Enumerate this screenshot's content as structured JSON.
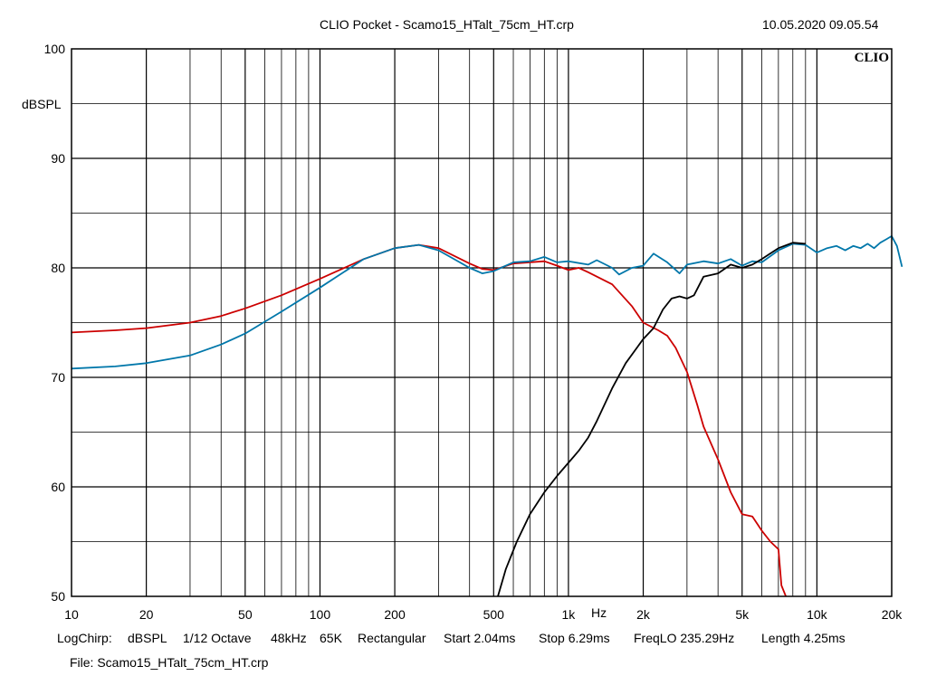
{
  "header": {
    "title": "CLIO Pocket - Scamo15_HTalt_75cm_HT.crp",
    "datetime": "10.05.2020 09.05.54",
    "logo": "CLIO"
  },
  "footer": {
    "params": [
      "LogChirp:",
      "dBSPL",
      "1/12 Octave",
      "48kHz",
      "65K",
      "Rectangular",
      "Start 2.04ms",
      "Stop 6.29ms",
      "FreqLO 235.29Hz",
      "Length 4.25ms"
    ],
    "file": "File: Scamo15_HTalt_75cm_HT.crp"
  },
  "chart_data": {
    "type": "line",
    "x_scale": "log",
    "xlabel": "Hz",
    "ylabel": "dBSPL",
    "xlim": [
      10,
      20000
    ],
    "ylim": [
      50,
      100
    ],
    "grid": true,
    "x_ticks": [
      {
        "value": 10,
        "label": "10"
      },
      {
        "value": 20,
        "label": "20"
      },
      {
        "value": 50,
        "label": "50"
      },
      {
        "value": 100,
        "label": "100"
      },
      {
        "value": 200,
        "label": "200"
      },
      {
        "value": 500,
        "label": "500"
      },
      {
        "value": 1000,
        "label": "1k"
      },
      {
        "value": 2000,
        "label": "2k"
      },
      {
        "value": 5000,
        "label": "5k"
      },
      {
        "value": 10000,
        "label": "10k"
      },
      {
        "value": 20000,
        "label": "20k"
      }
    ],
    "y_ticks": [
      {
        "value": 100,
        "label": "100"
      },
      {
        "value": 90,
        "label": "90"
      },
      {
        "value": 80,
        "label": "80"
      },
      {
        "value": 70,
        "label": "70"
      },
      {
        "value": 60,
        "label": "60"
      },
      {
        "value": 50,
        "label": "50"
      }
    ],
    "series": [
      {
        "color": "#cc0000",
        "points": [
          [
            10,
            74.1
          ],
          [
            15,
            74.3
          ],
          [
            20,
            74.5
          ],
          [
            30,
            75
          ],
          [
            40,
            75.6
          ],
          [
            50,
            76.3
          ],
          [
            70,
            77.5
          ],
          [
            100,
            79
          ],
          [
            150,
            80.8
          ],
          [
            200,
            81.8
          ],
          [
            250,
            82.1
          ],
          [
            300,
            81.8
          ],
          [
            400,
            80.4
          ],
          [
            450,
            79.9
          ],
          [
            500,
            79.8
          ],
          [
            600,
            80.4
          ],
          [
            800,
            80.6
          ],
          [
            900,
            80.2
          ],
          [
            1000,
            79.8
          ],
          [
            1100,
            80
          ],
          [
            1200,
            79.6
          ],
          [
            1500,
            78.5
          ],
          [
            1800,
            76.5
          ],
          [
            2000,
            75
          ],
          [
            2300,
            74.3
          ],
          [
            2500,
            73.8
          ],
          [
            2700,
            72.7
          ],
          [
            3000,
            70.5
          ],
          [
            3300,
            67.5
          ],
          [
            3500,
            65.5
          ],
          [
            4000,
            62.5
          ],
          [
            4500,
            59.5
          ],
          [
            5000,
            57.5
          ],
          [
            5500,
            57.3
          ],
          [
            6000,
            56
          ],
          [
            6500,
            55
          ],
          [
            7000,
            54.3
          ],
          [
            7200,
            51
          ],
          [
            7500,
            50
          ]
        ]
      },
      {
        "color": "#0077aa",
        "points": [
          [
            10,
            70.8
          ],
          [
            15,
            71
          ],
          [
            20,
            71.3
          ],
          [
            30,
            72
          ],
          [
            40,
            73
          ],
          [
            50,
            74
          ],
          [
            70,
            76
          ],
          [
            100,
            78.2
          ],
          [
            150,
            80.8
          ],
          [
            200,
            81.8
          ],
          [
            250,
            82.1
          ],
          [
            300,
            81.6
          ],
          [
            400,
            80
          ],
          [
            450,
            79.5
          ],
          [
            500,
            79.7
          ],
          [
            600,
            80.5
          ],
          [
            700,
            80.6
          ],
          [
            800,
            81
          ],
          [
            900,
            80.5
          ],
          [
            1000,
            80.6
          ],
          [
            1200,
            80.3
          ],
          [
            1300,
            80.7
          ],
          [
            1500,
            80
          ],
          [
            1600,
            79.4
          ],
          [
            1800,
            80
          ],
          [
            2000,
            80.2
          ],
          [
            2200,
            81.3
          ],
          [
            2500,
            80.5
          ],
          [
            2800,
            79.5
          ],
          [
            3000,
            80.3
          ],
          [
            3500,
            80.6
          ],
          [
            4000,
            80.4
          ],
          [
            4500,
            80.8
          ],
          [
            5000,
            80.2
          ],
          [
            5500,
            80.6
          ],
          [
            6000,
            80.5
          ],
          [
            7000,
            81.6
          ],
          [
            8000,
            82.2
          ],
          [
            9000,
            82.1
          ],
          [
            10000,
            81.4
          ],
          [
            11000,
            81.8
          ],
          [
            12000,
            82
          ],
          [
            13000,
            81.6
          ],
          [
            14000,
            82
          ],
          [
            15000,
            81.8
          ],
          [
            16000,
            82.2
          ],
          [
            17000,
            81.8
          ],
          [
            18000,
            82.3
          ],
          [
            19000,
            82.6
          ],
          [
            20000,
            82.9
          ],
          [
            21000,
            82
          ],
          [
            22000,
            80.1
          ]
        ]
      },
      {
        "color": "#000000",
        "points": [
          [
            520,
            50
          ],
          [
            560,
            52.5
          ],
          [
            620,
            55
          ],
          [
            700,
            57.5
          ],
          [
            800,
            59.5
          ],
          [
            900,
            61
          ],
          [
            1000,
            62.2
          ],
          [
            1100,
            63.3
          ],
          [
            1200,
            64.5
          ],
          [
            1300,
            66
          ],
          [
            1500,
            69
          ],
          [
            1700,
            71.3
          ],
          [
            1900,
            72.8
          ],
          [
            2000,
            73.5
          ],
          [
            2200,
            74.5
          ],
          [
            2400,
            76.2
          ],
          [
            2600,
            77.2
          ],
          [
            2800,
            77.4
          ],
          [
            3000,
            77.2
          ],
          [
            3200,
            77.5
          ],
          [
            3500,
            79.2
          ],
          [
            4000,
            79.5
          ],
          [
            4500,
            80.3
          ],
          [
            5000,
            80
          ],
          [
            5500,
            80.3
          ],
          [
            6000,
            80.8
          ],
          [
            7000,
            81.8
          ],
          [
            8000,
            82.3
          ],
          [
            9000,
            82.2
          ]
        ]
      }
    ]
  }
}
